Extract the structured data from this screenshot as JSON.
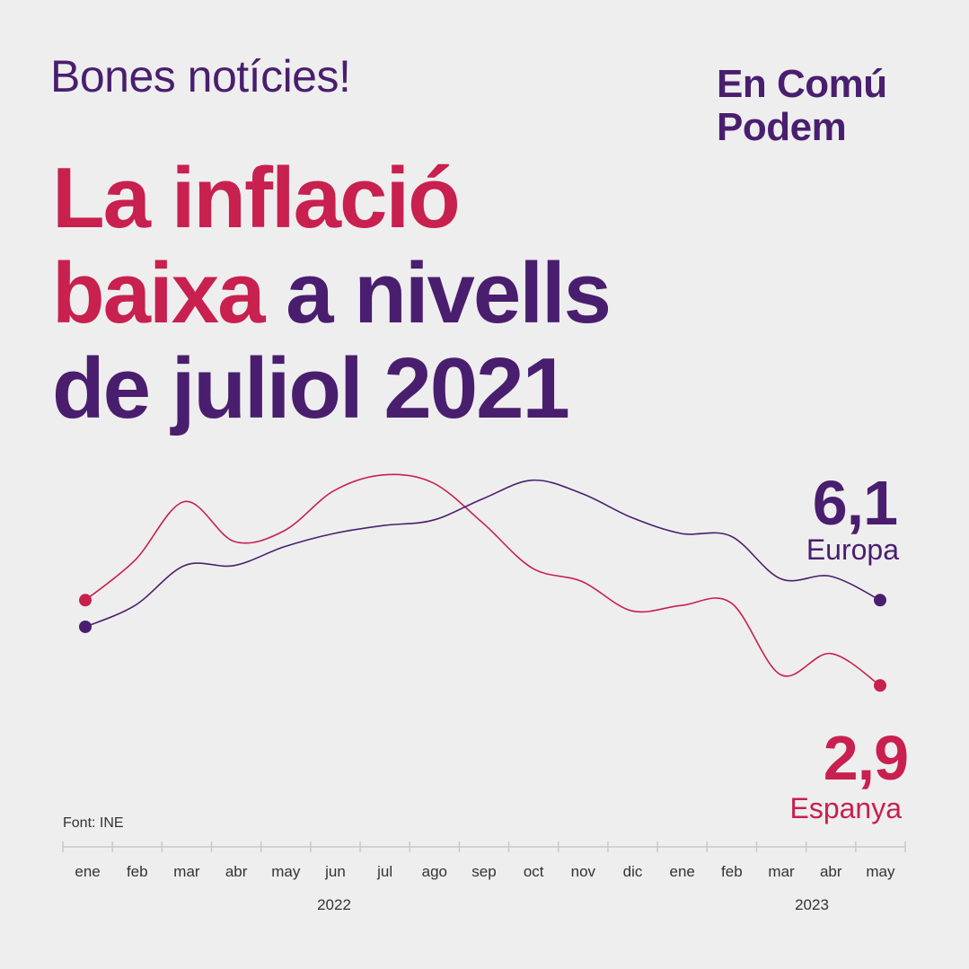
{
  "kicker": "Bones notícies!",
  "brand": {
    "line1": "En Comú",
    "line2": "Podem"
  },
  "headline": {
    "part1": "La inflació",
    "part2": "baixa",
    "part3": " a nivells",
    "part4": "de juliol 2021"
  },
  "source": "Font: INE",
  "colors": {
    "europa": "#4a1e6e",
    "espanya": "#c8204f",
    "background": "#eeeeee"
  },
  "chart_data": {
    "type": "line",
    "title": "",
    "xlabel": "",
    "ylabel": "",
    "categories": [
      "ene",
      "feb",
      "mar",
      "abr",
      "may",
      "jun",
      "jul",
      "ago",
      "sep",
      "oct",
      "nov",
      "dic",
      "ene",
      "feb",
      "mar",
      "abr",
      "may"
    ],
    "year_groups": [
      {
        "label": "2022",
        "from": 0,
        "to": 11
      },
      {
        "label": "2023",
        "from": 12,
        "to": 16
      }
    ],
    "ylim": [
      2,
      11.5
    ],
    "grid": false,
    "series": [
      {
        "name": "Europa",
        "value_label": "6,1",
        "color": "#4a1e6e",
        "values": [
          5.1,
          5.9,
          7.4,
          7.4,
          8.1,
          8.6,
          8.9,
          9.1,
          9.9,
          10.6,
          10.1,
          9.2,
          8.6,
          8.5,
          6.9,
          7.0,
          6.1
        ]
      },
      {
        "name": "Espanya",
        "value_label": "2,9",
        "color": "#c8204f",
        "values": [
          6.1,
          7.6,
          9.8,
          8.3,
          8.7,
          10.2,
          10.8,
          10.5,
          9.0,
          7.3,
          6.8,
          5.7,
          5.9,
          6.0,
          3.3,
          4.1,
          2.9
        ]
      }
    ]
  }
}
